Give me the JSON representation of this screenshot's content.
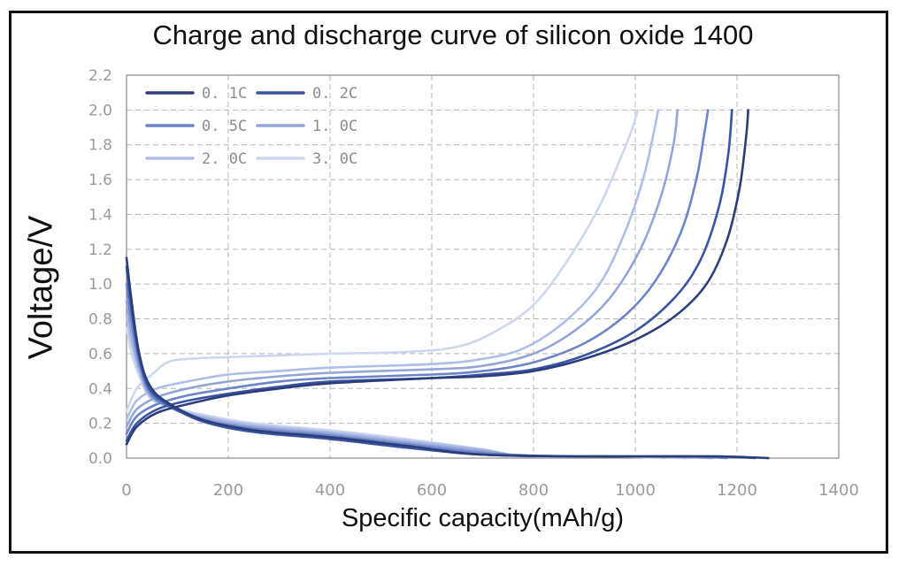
{
  "chart_data": {
    "type": "line",
    "title": "Charge and discharge curve of silicon oxide 1400",
    "xlabel": "Specific capacity(mAh/g)",
    "ylabel": "Voltage/V",
    "xlim": [
      0,
      1400
    ],
    "ylim": [
      0,
      2.2
    ],
    "xticks": [
      0,
      200,
      400,
      600,
      800,
      1000,
      1200,
      1400
    ],
    "xtick_labels": [
      "0",
      "200",
      "400",
      "600",
      "800",
      "1000",
      "1200",
      "1400"
    ],
    "yticks": [
      0,
      0.2,
      0.4,
      0.6,
      0.8,
      1.0,
      1.2,
      1.4,
      1.6,
      1.8,
      2.0,
      2.2
    ],
    "ytick_labels": [
      "0.0",
      "0.2",
      "0.4",
      "0.6",
      "0.8",
      "1.0",
      "1.2",
      "1.4",
      "1.6",
      "1.8",
      "2.0",
      "2.2"
    ],
    "grid": true,
    "legend_position": "top-left",
    "series": [
      {
        "name": "0. 1C",
        "color": "#2c3e7a",
        "discharge": [
          [
            0,
            1.15
          ],
          [
            10,
            0.9
          ],
          [
            25,
            0.6
          ],
          [
            45,
            0.42
          ],
          [
            80,
            0.32
          ],
          [
            150,
            0.22
          ],
          [
            250,
            0.16
          ],
          [
            400,
            0.12
          ],
          [
            550,
            0.07
          ],
          [
            700,
            0.02
          ],
          [
            900,
            0.01
          ],
          [
            1150,
            0.01
          ],
          [
            1220,
            0.005
          ],
          [
            1262,
            0.0
          ]
        ],
        "charge": [
          [
            0,
            0.08
          ],
          [
            20,
            0.18
          ],
          [
            60,
            0.26
          ],
          [
            120,
            0.31
          ],
          [
            200,
            0.36
          ],
          [
            300,
            0.4
          ],
          [
            400,
            0.43
          ],
          [
            600,
            0.46
          ],
          [
            700,
            0.47
          ],
          [
            800,
            0.5
          ],
          [
            900,
            0.57
          ],
          [
            1000,
            0.68
          ],
          [
            1080,
            0.82
          ],
          [
            1140,
            1.0
          ],
          [
            1180,
            1.25
          ],
          [
            1205,
            1.55
          ],
          [
            1218,
            1.85
          ],
          [
            1222,
            2.0
          ]
        ]
      },
      {
        "name": "0. 2C",
        "color": "#3a54a4",
        "discharge": [
          [
            0,
            1.1
          ],
          [
            10,
            0.85
          ],
          [
            25,
            0.58
          ],
          [
            45,
            0.4
          ],
          [
            80,
            0.31
          ],
          [
            150,
            0.21
          ],
          [
            250,
            0.15
          ],
          [
            400,
            0.11
          ],
          [
            550,
            0.06
          ],
          [
            700,
            0.02
          ],
          [
            900,
            0.01
          ],
          [
            1150,
            0.01
          ],
          [
            1200,
            0.005
          ],
          [
            1235,
            0.0
          ]
        ],
        "charge": [
          [
            0,
            0.1
          ],
          [
            20,
            0.2
          ],
          [
            60,
            0.28
          ],
          [
            120,
            0.33
          ],
          [
            200,
            0.37
          ],
          [
            300,
            0.41
          ],
          [
            400,
            0.44
          ],
          [
            600,
            0.46
          ],
          [
            700,
            0.48
          ],
          [
            800,
            0.51
          ],
          [
            900,
            0.59
          ],
          [
            1000,
            0.73
          ],
          [
            1080,
            0.93
          ],
          [
            1130,
            1.15
          ],
          [
            1165,
            1.45
          ],
          [
            1183,
            1.75
          ],
          [
            1190,
            2.0
          ]
        ]
      },
      {
        "name": "0. 5C",
        "color": "#6d84c9",
        "discharge": [
          [
            0,
            1.0
          ],
          [
            10,
            0.78
          ],
          [
            25,
            0.55
          ],
          [
            45,
            0.38
          ],
          [
            80,
            0.3
          ],
          [
            150,
            0.22
          ],
          [
            250,
            0.17
          ],
          [
            400,
            0.13
          ],
          [
            550,
            0.08
          ],
          [
            700,
            0.03
          ],
          [
            850,
            0.01
          ],
          [
            1100,
            0.01
          ],
          [
            1180,
            0.0
          ]
        ],
        "charge": [
          [
            0,
            0.14
          ],
          [
            20,
            0.24
          ],
          [
            60,
            0.31
          ],
          [
            120,
            0.36
          ],
          [
            200,
            0.4
          ],
          [
            300,
            0.44
          ],
          [
            400,
            0.46
          ],
          [
            600,
            0.48
          ],
          [
            700,
            0.5
          ],
          [
            800,
            0.55
          ],
          [
            900,
            0.66
          ],
          [
            980,
            0.82
          ],
          [
            1040,
            1.02
          ],
          [
            1090,
            1.3
          ],
          [
            1120,
            1.6
          ],
          [
            1135,
            1.85
          ],
          [
            1143,
            2.0
          ]
        ]
      },
      {
        "name": "1. 0C",
        "color": "#94a6d8",
        "discharge": [
          [
            0,
            0.9
          ],
          [
            10,
            0.72
          ],
          [
            25,
            0.52
          ],
          [
            45,
            0.37
          ],
          [
            80,
            0.3
          ],
          [
            150,
            0.23
          ],
          [
            250,
            0.18
          ],
          [
            400,
            0.14
          ],
          [
            550,
            0.09
          ],
          [
            700,
            0.04
          ],
          [
            800,
            0.01
          ],
          [
            1050,
            0.01
          ],
          [
            1150,
            0.0
          ]
        ],
        "charge": [
          [
            0,
            0.18
          ],
          [
            20,
            0.28
          ],
          [
            60,
            0.35
          ],
          [
            120,
            0.4
          ],
          [
            200,
            0.44
          ],
          [
            300,
            0.47
          ],
          [
            400,
            0.49
          ],
          [
            600,
            0.51
          ],
          [
            700,
            0.53
          ],
          [
            800,
            0.6
          ],
          [
            880,
            0.73
          ],
          [
            950,
            0.92
          ],
          [
            1010,
            1.2
          ],
          [
            1050,
            1.5
          ],
          [
            1075,
            1.8
          ],
          [
            1083,
            2.0
          ]
        ]
      },
      {
        "name": "2. 0C",
        "color": "#aebee6",
        "discharge": [
          [
            0,
            0.82
          ],
          [
            10,
            0.66
          ],
          [
            25,
            0.5
          ],
          [
            45,
            0.36
          ],
          [
            80,
            0.3
          ],
          [
            150,
            0.24
          ],
          [
            250,
            0.19
          ],
          [
            400,
            0.15
          ],
          [
            550,
            0.1
          ],
          [
            700,
            0.05
          ],
          [
            790,
            0.01
          ],
          [
            1000,
            0.01
          ],
          [
            1100,
            0.0
          ]
        ],
        "charge": [
          [
            0,
            0.22
          ],
          [
            20,
            0.33
          ],
          [
            60,
            0.4
          ],
          [
            120,
            0.44
          ],
          [
            200,
            0.48
          ],
          [
            300,
            0.5
          ],
          [
            400,
            0.52
          ],
          [
            600,
            0.54
          ],
          [
            700,
            0.57
          ],
          [
            780,
            0.63
          ],
          [
            860,
            0.78
          ],
          [
            930,
            1.0
          ],
          [
            980,
            1.3
          ],
          [
            1015,
            1.6
          ],
          [
            1035,
            1.85
          ],
          [
            1045,
            2.0
          ]
        ]
      },
      {
        "name": "3. 0C",
        "color": "#cdd7ef",
        "discharge": [
          [
            0,
            0.75
          ],
          [
            10,
            0.6
          ],
          [
            25,
            0.47
          ],
          [
            45,
            0.35
          ],
          [
            80,
            0.3
          ],
          [
            150,
            0.25
          ],
          [
            250,
            0.2
          ],
          [
            400,
            0.16
          ],
          [
            550,
            0.11
          ],
          [
            700,
            0.05
          ],
          [
            780,
            0.01
          ],
          [
            950,
            0.01
          ],
          [
            1050,
            0.0
          ]
        ],
        "charge": [
          [
            0,
            0.27
          ],
          [
            20,
            0.4
          ],
          [
            50,
            0.48
          ],
          [
            80,
            0.55
          ],
          [
            120,
            0.57
          ],
          [
            200,
            0.58
          ],
          [
            300,
            0.59
          ],
          [
            400,
            0.6
          ],
          [
            550,
            0.61
          ],
          [
            650,
            0.64
          ],
          [
            720,
            0.72
          ],
          [
            800,
            0.88
          ],
          [
            870,
            1.15
          ],
          [
            930,
            1.45
          ],
          [
            975,
            1.75
          ],
          [
            995,
            1.9
          ],
          [
            1005,
            2.0
          ]
        ]
      }
    ]
  }
}
